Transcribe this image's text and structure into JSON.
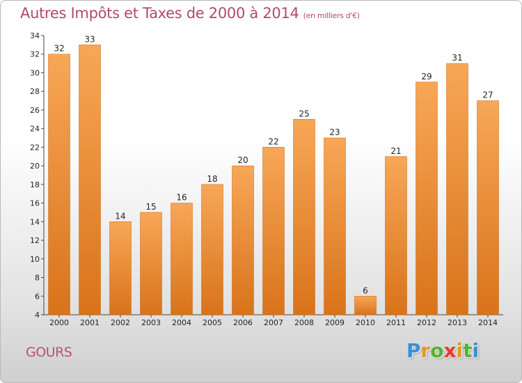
{
  "header": {
    "title": "Autres Impôts et Taxes de 2000 à 2014",
    "unit": "(en milliers d'€)"
  },
  "footer": {
    "commune": "GOURS",
    "logo_letters": [
      "P",
      "r",
      "o",
      "x",
      "i",
      "t",
      "i"
    ],
    "logo_colors": [
      "#3a8fd8",
      "#e8961e",
      "#54b32e",
      "#e63a2e",
      "#e8961e",
      "#54b32e",
      "#3a8fd8"
    ]
  },
  "colors": {
    "bar_light": "#f7a757",
    "bar_dark": "#d9731a",
    "title": "#b04b66"
  },
  "chart_data": {
    "type": "bar",
    "title": "Autres Impôts et Taxes de 2000 à 2014",
    "xlabel": "",
    "ylabel": "",
    "categories": [
      "2000",
      "2001",
      "2002",
      "2003",
      "2004",
      "2005",
      "2006",
      "2007",
      "2008",
      "2009",
      "2010",
      "2011",
      "2012",
      "2013",
      "2014"
    ],
    "values": [
      32,
      33,
      14,
      15,
      16,
      18,
      20,
      22,
      25,
      23,
      6,
      21,
      29,
      31,
      27
    ],
    "data_labels": [
      "32",
      "33",
      "14",
      "15",
      "16",
      "18",
      "20",
      "22",
      "25",
      "23",
      "6",
      "21",
      "29",
      "31",
      "27"
    ],
    "ylim": [
      4,
      34
    ],
    "yticks": [
      4,
      6,
      8,
      10,
      12,
      14,
      16,
      18,
      20,
      22,
      24,
      26,
      28,
      30,
      32,
      34
    ],
    "grid": false,
    "legend": "none"
  }
}
